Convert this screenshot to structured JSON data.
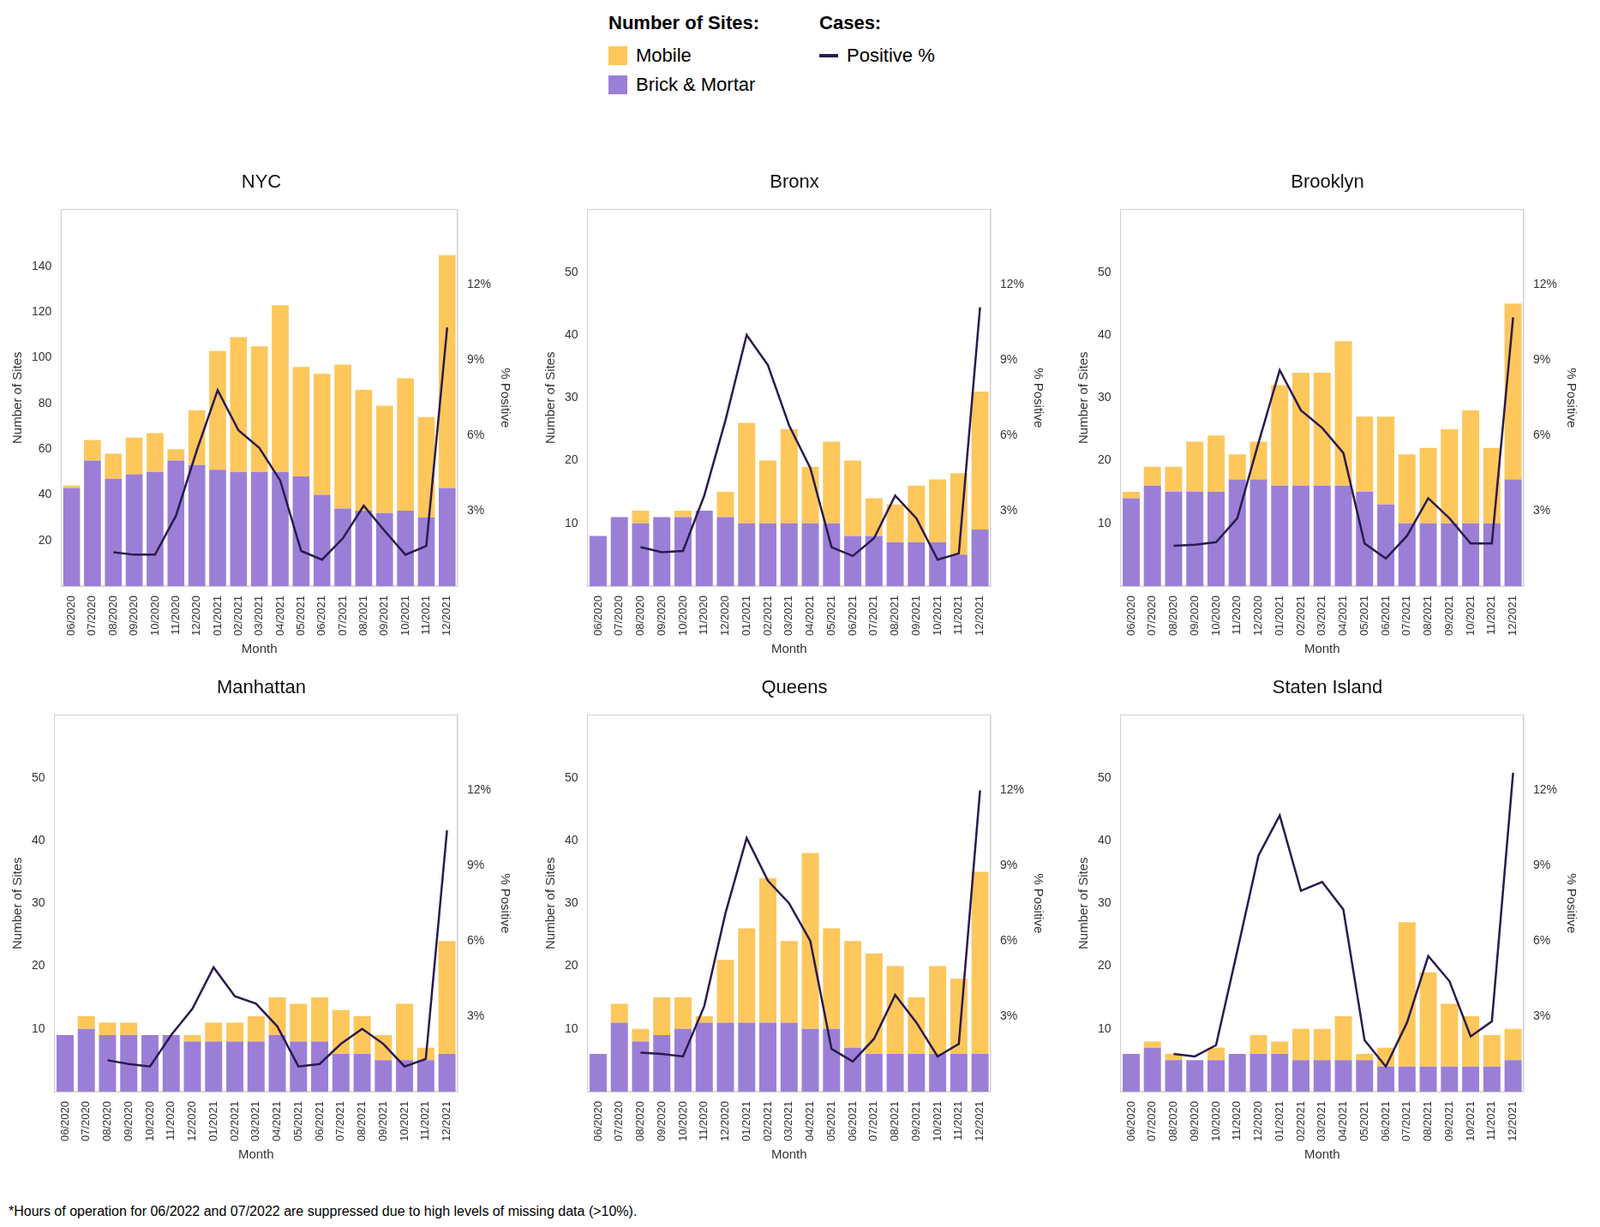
{
  "legend_headers": [
    "Number of Sites:",
    "Cases:"
  ],
  "footnote": "*Hours of operation for 06/2022 and 07/2022 are suppressed due to high levels of missing data (>10%).",
  "chart_data": [
    {
      "type": "bar",
      "title": "NYC",
      "x_label": "Month",
      "y_label": "Number of Sites",
      "y2_label": "% Positive",
      "categories": [
        "06/2020",
        "07/2020",
        "08/2020",
        "09/2020",
        "10/2020",
        "11/2020",
        "12/2020",
        "01/2021",
        "02/2021",
        "03/2021",
        "04/2021",
        "05/2021",
        "06/2021",
        "07/2021",
        "08/2021",
        "09/2021",
        "10/2021",
        "11/2021",
        "12/2021"
      ],
      "stacked": true,
      "grid": false,
      "ylim": [
        0,
        165
      ],
      "yticks": [
        20,
        40,
        60,
        80,
        100,
        120,
        140
      ],
      "y2lim": [
        0,
        15
      ],
      "y2ticks": [
        {
          "value": 3,
          "label": "3%"
        },
        {
          "value": 6,
          "label": "6%"
        },
        {
          "value": 9,
          "label": "9%"
        },
        {
          "value": 12,
          "label": "12%"
        }
      ],
      "series": [
        {
          "name": "Brick & Mortar",
          "color": "#9b7fd6",
          "values": [
            43,
            55,
            47,
            49,
            50,
            55,
            53,
            51,
            50,
            50,
            50,
            48,
            40,
            34,
            33,
            32,
            33,
            30,
            43
          ]
        },
        {
          "name": "Mobile",
          "color": "#fdc75c",
          "values": [
            1,
            9,
            11,
            16,
            17,
            5,
            24,
            52,
            59,
            55,
            73,
            48,
            53,
            63,
            53,
            47,
            58,
            44,
            102
          ]
        },
        {
          "name": "Positive %",
          "type": "line",
          "axis": "y2",
          "color": "#2b1a4f",
          "marker": "none",
          "values": [
            null,
            null,
            1.35,
            1.25,
            1.25,
            2.8,
            5.4,
            7.8,
            6.2,
            5.5,
            4.2,
            1.4,
            1.05,
            1.9,
            3.2,
            2.2,
            1.25,
            1.6,
            10.3
          ]
        }
      ]
    },
    {
      "type": "bar",
      "title": "Bronx",
      "x_label": "Month",
      "y_label": "Number of Sites",
      "y2_label": "% Positive",
      "categories": [
        "06/2020",
        "07/2020",
        "08/2020",
        "09/2020",
        "10/2020",
        "11/2020",
        "12/2020",
        "01/2021",
        "02/2021",
        "03/2021",
        "04/2021",
        "05/2021",
        "06/2021",
        "07/2021",
        "08/2021",
        "09/2021",
        "10/2021",
        "11/2021",
        "12/2021"
      ],
      "stacked": true,
      "grid": false,
      "ylim": [
        0,
        60
      ],
      "yticks": [
        10,
        20,
        30,
        40,
        50
      ],
      "y2lim": [
        0,
        15
      ],
      "y2ticks": [
        {
          "value": 3,
          "label": "3%"
        },
        {
          "value": 6,
          "label": "6%"
        },
        {
          "value": 9,
          "label": "9%"
        },
        {
          "value": 12,
          "label": "12%"
        }
      ],
      "series": [
        {
          "name": "Brick & Mortar",
          "color": "#9b7fd6",
          "values": [
            8,
            11,
            10,
            11,
            11,
            12,
            11,
            10,
            10,
            10,
            10,
            10,
            8,
            8,
            7,
            7,
            7,
            5,
            9
          ]
        },
        {
          "name": "Mobile",
          "color": "#fdc75c",
          "values": [
            0,
            0,
            2,
            0,
            1,
            0,
            4,
            16,
            10,
            15,
            9,
            13,
            12,
            6,
            6,
            9,
            10,
            13,
            22
          ]
        },
        {
          "name": "Positive %",
          "type": "line",
          "axis": "y2",
          "color": "#2b1a4f",
          "marker": "none",
          "values": [
            null,
            null,
            1.55,
            1.35,
            1.4,
            3.6,
            6.6,
            10.0,
            8.8,
            6.4,
            4.7,
            1.55,
            1.2,
            1.9,
            3.6,
            2.7,
            1.05,
            1.3,
            11.1
          ]
        }
      ]
    },
    {
      "type": "bar",
      "title": "Brooklyn",
      "x_label": "Month",
      "y_label": "Number of Sites",
      "y2_label": "% Positive",
      "categories": [
        "06/2020",
        "07/2020",
        "08/2020",
        "09/2020",
        "10/2020",
        "11/2020",
        "12/2020",
        "01/2021",
        "02/2021",
        "03/2021",
        "04/2021",
        "05/2021",
        "06/2021",
        "07/2021",
        "08/2021",
        "09/2021",
        "10/2021",
        "11/2021",
        "12/2021"
      ],
      "stacked": true,
      "grid": false,
      "ylim": [
        0,
        60
      ],
      "yticks": [
        10,
        20,
        30,
        40,
        50
      ],
      "y2lim": [
        0,
        15
      ],
      "y2ticks": [
        {
          "value": 3,
          "label": "3%"
        },
        {
          "value": 6,
          "label": "6%"
        },
        {
          "value": 9,
          "label": "9%"
        },
        {
          "value": 12,
          "label": "12%"
        }
      ],
      "series": [
        {
          "name": "Brick & Mortar",
          "color": "#9b7fd6",
          "values": [
            14,
            16,
            15,
            15,
            15,
            17,
            17,
            16,
            16,
            16,
            16,
            15,
            13,
            10,
            10,
            10,
            10,
            10,
            17
          ]
        },
        {
          "name": "Mobile",
          "color": "#fdc75c",
          "values": [
            1,
            3,
            4,
            8,
            9,
            4,
            6,
            16,
            18,
            18,
            23,
            12,
            14,
            11,
            12,
            15,
            18,
            12,
            28
          ]
        },
        {
          "name": "Positive %",
          "type": "line",
          "axis": "y2",
          "color": "#2b1a4f",
          "marker": "none",
          "values": [
            null,
            null,
            1.6,
            1.65,
            1.75,
            2.7,
            5.7,
            8.6,
            7.0,
            6.3,
            5.3,
            1.7,
            1.1,
            2.0,
            3.5,
            2.7,
            1.7,
            1.7,
            10.7
          ]
        }
      ]
    },
    {
      "type": "bar",
      "title": "Manhattan",
      "x_label": "Month",
      "y_label": "Number of Sites",
      "y2_label": "% Positive",
      "categories": [
        "06/2020",
        "07/2020",
        "08/2020",
        "09/2020",
        "10/2020",
        "11/2020",
        "12/2020",
        "01/2021",
        "02/2021",
        "03/2021",
        "04/2021",
        "05/2021",
        "06/2021",
        "07/2021",
        "08/2021",
        "09/2021",
        "10/2021",
        "11/2021",
        "12/2021"
      ],
      "stacked": true,
      "grid": false,
      "ylim": [
        0,
        60
      ],
      "yticks": [
        10,
        20,
        30,
        40,
        50
      ],
      "y2lim": [
        0,
        15
      ],
      "y2ticks": [
        {
          "value": 3,
          "label": "3%"
        },
        {
          "value": 6,
          "label": "6%"
        },
        {
          "value": 9,
          "label": "9%"
        },
        {
          "value": 12,
          "label": "12%"
        }
      ],
      "series": [
        {
          "name": "Brick & Mortar",
          "color": "#9b7fd6",
          "values": [
            9,
            10,
            9,
            9,
            9,
            9,
            8,
            8,
            8,
            8,
            9,
            8,
            8,
            6,
            6,
            5,
            5,
            5,
            6
          ]
        },
        {
          "name": "Mobile",
          "color": "#fdc75c",
          "values": [
            0,
            2,
            2,
            2,
            0,
            0,
            1,
            3,
            3,
            4,
            6,
            6,
            7,
            7,
            6,
            4,
            9,
            2,
            18
          ]
        },
        {
          "name": "Positive %",
          "type": "line",
          "axis": "y2",
          "color": "#2b1a4f",
          "marker": "none",
          "values": [
            null,
            null,
            1.25,
            1.1,
            1.0,
            2.25,
            3.3,
            4.95,
            3.8,
            3.5,
            2.6,
            1.0,
            1.1,
            1.9,
            2.5,
            1.9,
            1.0,
            1.3,
            10.4
          ]
        }
      ]
    },
    {
      "type": "bar",
      "title": "Queens",
      "x_label": "Month",
      "y_label": "Number of Sites",
      "y2_label": "% Positive",
      "categories": [
        "06/2020",
        "07/2020",
        "08/2020",
        "09/2020",
        "10/2020",
        "11/2020",
        "12/2020",
        "01/2021",
        "02/2021",
        "03/2021",
        "04/2021",
        "05/2021",
        "06/2021",
        "07/2021",
        "08/2021",
        "09/2021",
        "10/2021",
        "11/2021",
        "12/2021"
      ],
      "stacked": true,
      "grid": false,
      "ylim": [
        0,
        60
      ],
      "yticks": [
        10,
        20,
        30,
        40,
        50
      ],
      "y2lim": [
        0,
        15
      ],
      "y2ticks": [
        {
          "value": 3,
          "label": "3%"
        },
        {
          "value": 6,
          "label": "6%"
        },
        {
          "value": 9,
          "label": "9%"
        },
        {
          "value": 12,
          "label": "12%"
        }
      ],
      "series": [
        {
          "name": "Brick & Mortar",
          "color": "#9b7fd6",
          "values": [
            6,
            11,
            8,
            9,
            10,
            11,
            11,
            11,
            11,
            11,
            10,
            10,
            7,
            6,
            6,
            6,
            6,
            6,
            6
          ]
        },
        {
          "name": "Mobile",
          "color": "#fdc75c",
          "values": [
            0,
            3,
            2,
            6,
            5,
            1,
            10,
            15,
            23,
            13,
            28,
            16,
            17,
            16,
            14,
            9,
            14,
            12,
            29
          ]
        },
        {
          "name": "Positive %",
          "type": "line",
          "axis": "y2",
          "color": "#2b1a4f",
          "marker": "none",
          "values": [
            null,
            null,
            1.55,
            1.5,
            1.4,
            3.4,
            7.1,
            10.1,
            8.4,
            7.5,
            6.0,
            1.7,
            1.2,
            2.1,
            3.85,
            2.75,
            1.4,
            1.9,
            12.0
          ]
        }
      ]
    },
    {
      "type": "bar",
      "title": "Staten Island",
      "x_label": "Month",
      "y_label": "Number of Sites",
      "y2_label": "% Positive",
      "categories": [
        "06/2020",
        "07/2020",
        "08/2020",
        "09/2020",
        "10/2020",
        "11/2020",
        "12/2020",
        "01/2021",
        "02/2021",
        "03/2021",
        "04/2021",
        "05/2021",
        "06/2021",
        "07/2021",
        "08/2021",
        "09/2021",
        "10/2021",
        "11/2021",
        "12/2021"
      ],
      "stacked": true,
      "grid": false,
      "ylim": [
        0,
        60
      ],
      "yticks": [
        10,
        20,
        30,
        40,
        50
      ],
      "y2lim": [
        0,
        15
      ],
      "y2ticks": [
        {
          "value": 3,
          "label": "3%"
        },
        {
          "value": 6,
          "label": "6%"
        },
        {
          "value": 9,
          "label": "9%"
        },
        {
          "value": 12,
          "label": "12%"
        }
      ],
      "series": [
        {
          "name": "Brick & Mortar",
          "color": "#9b7fd6",
          "values": [
            6,
            7,
            5,
            5,
            5,
            6,
            6,
            6,
            5,
            5,
            5,
            5,
            4,
            4,
            4,
            4,
            4,
            4,
            5
          ]
        },
        {
          "name": "Mobile",
          "color": "#fdc75c",
          "values": [
            0,
            1,
            1,
            0,
            2,
            0,
            3,
            2,
            5,
            5,
            7,
            1,
            3,
            23,
            15,
            10,
            8,
            5,
            5
          ]
        },
        {
          "name": "Positive %",
          "type": "line",
          "axis": "y2",
          "color": "#2b1a4f",
          "marker": "none",
          "values": [
            null,
            null,
            1.5,
            1.4,
            1.85,
            5.6,
            9.4,
            11.0,
            8.0,
            8.35,
            7.25,
            2.05,
            1.0,
            2.75,
            5.4,
            4.4,
            2.2,
            2.8,
            12.7
          ]
        }
      ]
    }
  ]
}
